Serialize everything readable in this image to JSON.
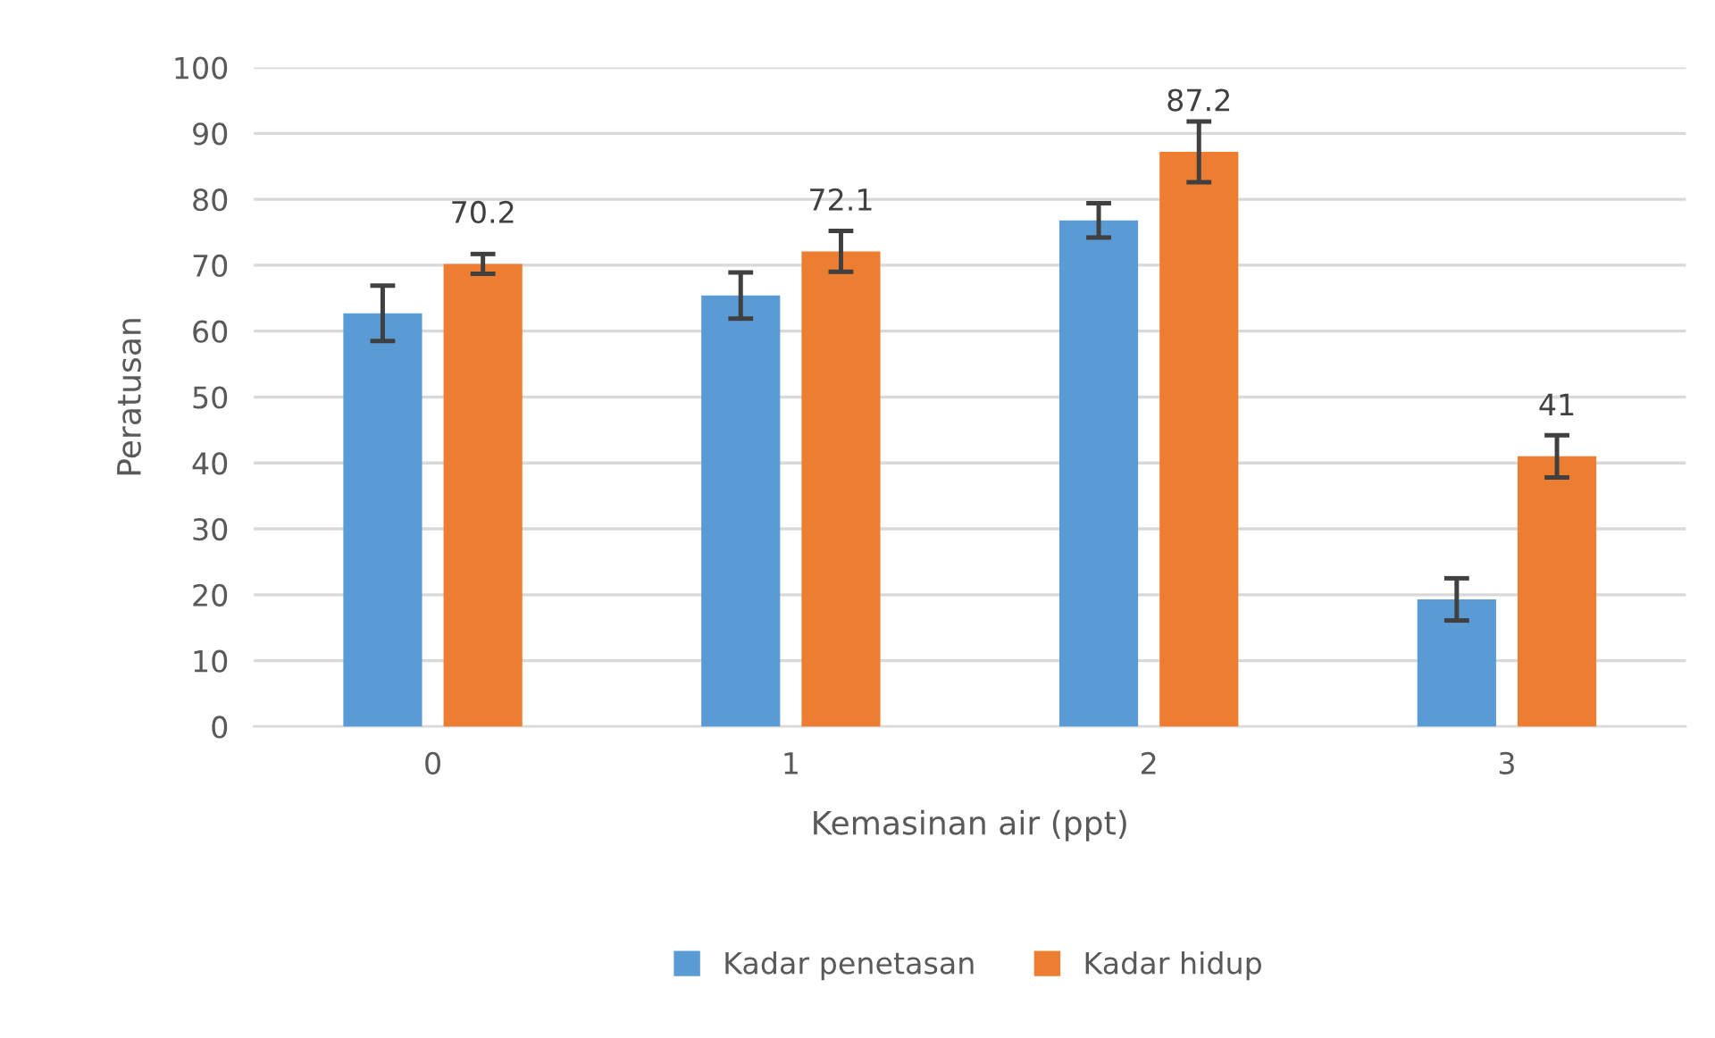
{
  "chart_data": {
    "type": "bar",
    "xlabel": "Kemasinan air (ppt)",
    "ylabel": "Peratusan",
    "categories": [
      "0",
      "1",
      "2",
      "3"
    ],
    "series": [
      {
        "name": "Kadar penetasan",
        "color": "#5b9bd5",
        "values": [
          62.7,
          65.4,
          76.8,
          19.3
        ],
        "errors": [
          4.2,
          3.5,
          2.6,
          3.2
        ]
      },
      {
        "name": "Kadar hidup",
        "color": "#ed7d31",
        "values": [
          70.2,
          72.1,
          87.2,
          41
        ],
        "errors": [
          1.5,
          3.1,
          4.6,
          3.2
        ],
        "value_labels": [
          "70.2",
          "72.1",
          "87.2",
          "41"
        ]
      }
    ],
    "ylim": [
      0,
      100
    ],
    "yticks": [
      0,
      10,
      20,
      30,
      40,
      50,
      60,
      70,
      80,
      90,
      100
    ],
    "grid": "y",
    "legend": "bottom"
  }
}
